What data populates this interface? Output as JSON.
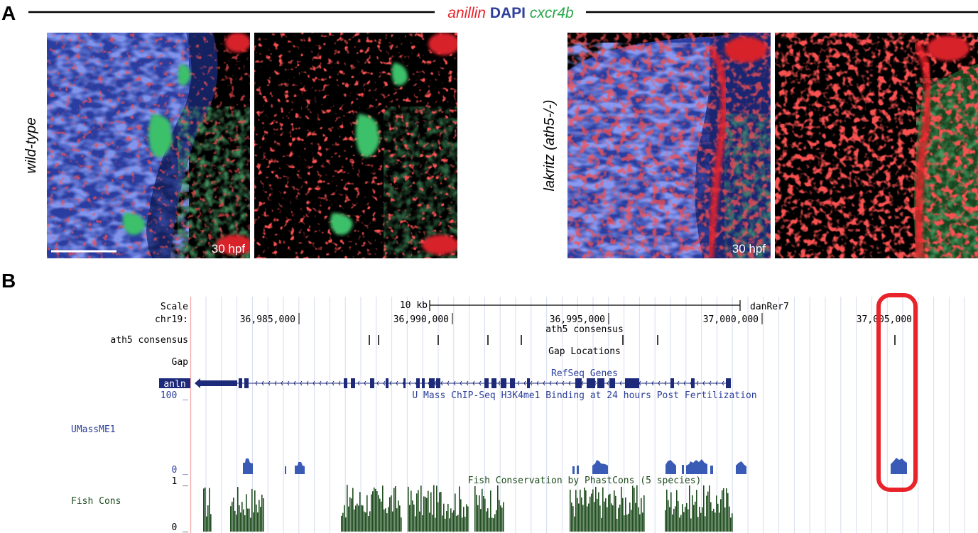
{
  "panel_a": {
    "letter": "A",
    "header": {
      "anillin": "anillin",
      "dapi": "DAPI",
      "cxcr4b": "cxcr4b"
    },
    "row_labels": [
      "wild-type",
      "lakritz (ath5-/-)"
    ],
    "stage_label": "30 hpf",
    "colors": {
      "anillin": "#e8232a",
      "dapi": "#2e3f9e",
      "cxcr4b": "#27a84a"
    }
  },
  "panel_b": {
    "letter": "B",
    "ruler": {
      "scale_label": "Scale",
      "scale_value": "10 kb",
      "assembly": "danRer7",
      "chrom_label": "chr19:",
      "positions": [
        "36,985,000",
        "36,990,000",
        "36,995,000",
        "37,000,000",
        "37,005,000"
      ]
    },
    "tracks": {
      "consensus_label": "ath5 consensus",
      "consensus_title": "ath5 consensus",
      "gap_label": "Gap",
      "gap_title": "Gap Locations",
      "refseq_title": "RefSeq Genes",
      "gene_name": "anln",
      "chip_title": "U Mass ChIP-Seq H3K4me1 Binding at 24 hours Post Fertilization",
      "chip_label": "UMassME1",
      "chip_max": "100 _",
      "chip_min": "0 _",
      "cons_title": "Fish Conservation by PhastCons (5 species)",
      "cons_label": "Fish Cons",
      "cons_max": "1 _",
      "cons_min": "0 _"
    },
    "colors": {
      "gene": "#1d2a7a",
      "chip": "#3a5bb5",
      "cons": "#1e4d1e",
      "highlight": "#e8232a"
    }
  }
}
